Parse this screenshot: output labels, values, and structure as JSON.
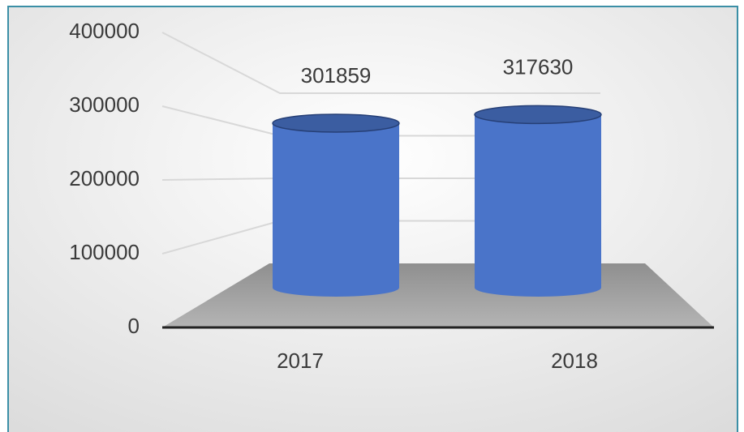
{
  "chart_data": {
    "type": "bar",
    "categories": [
      "2017",
      "2018"
    ],
    "values": [
      301859,
      317630
    ],
    "color": "#4a74c9",
    "ylim": [
      0,
      400000
    ],
    "yticks": [
      0,
      100000,
      200000,
      300000,
      400000
    ],
    "grid": true
  }
}
